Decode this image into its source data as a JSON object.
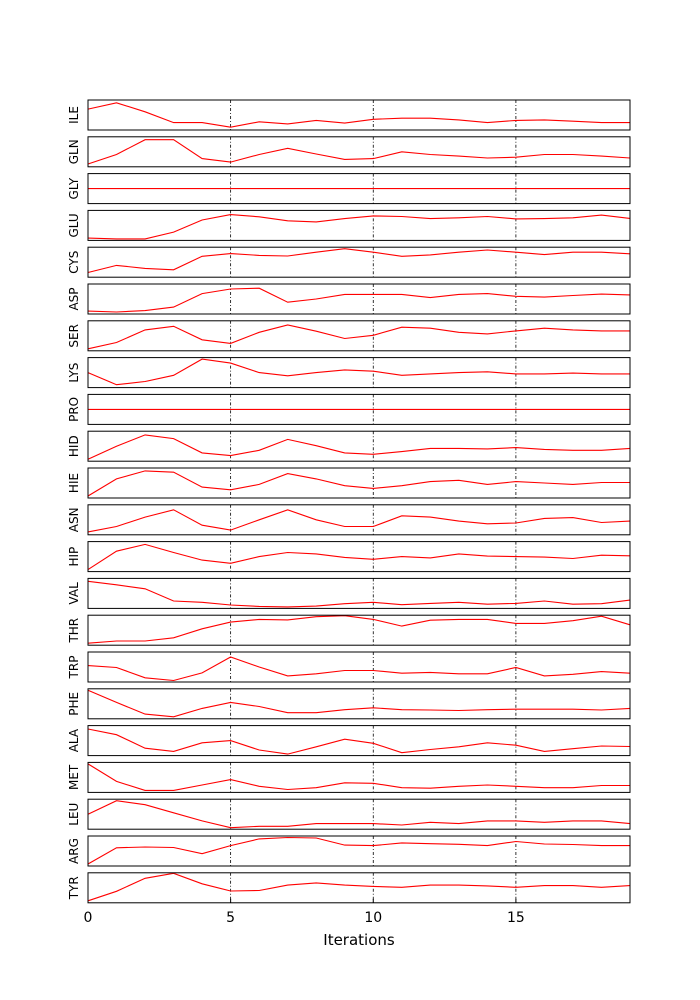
{
  "chart_data": {
    "type": "line",
    "xlabel": "Iterations",
    "xlim": [
      0,
      19
    ],
    "xticks": [
      0,
      5,
      10,
      15
    ],
    "ylim": [
      0,
      1
    ],
    "grid_x": true,
    "color": "#ff0000",
    "panels": [
      {
        "name": "ILE",
        "values": [
          0.72,
          0.95,
          0.62,
          0.22,
          0.22,
          0.05,
          0.25,
          0.17,
          0.3,
          0.2,
          0.34,
          0.38,
          0.38,
          0.32,
          0.22,
          0.3,
          0.32,
          0.27,
          0.22,
          0.22
        ]
      },
      {
        "name": "GLN",
        "values": [
          0.05,
          0.4,
          0.95,
          0.95,
          0.25,
          0.12,
          0.4,
          0.63,
          0.42,
          0.22,
          0.25,
          0.5,
          0.4,
          0.34,
          0.27,
          0.3,
          0.4,
          0.4,
          0.34,
          0.27
        ]
      },
      {
        "name": "GLY",
        "values": [
          0.5,
          0.5,
          0.5,
          0.5,
          0.5,
          0.5,
          0.5,
          0.5,
          0.5,
          0.5,
          0.5,
          0.5,
          0.5,
          0.5,
          0.5,
          0.5,
          0.5,
          0.5,
          0.5,
          0.5
        ]
      },
      {
        "name": "GLU",
        "values": [
          0.03,
          0.0,
          0.0,
          0.25,
          0.7,
          0.9,
          0.82,
          0.67,
          0.63,
          0.75,
          0.85,
          0.83,
          0.75,
          0.78,
          0.83,
          0.74,
          0.75,
          0.78,
          0.88,
          0.76
        ]
      },
      {
        "name": "CYS",
        "values": [
          0.12,
          0.38,
          0.27,
          0.22,
          0.72,
          0.82,
          0.75,
          0.73,
          0.87,
          1.0,
          0.87,
          0.72,
          0.77,
          0.87,
          0.95,
          0.87,
          0.78,
          0.87,
          0.87,
          0.81
        ]
      },
      {
        "name": "ASP",
        "values": [
          0.05,
          0.02,
          0.07,
          0.2,
          0.7,
          0.87,
          0.9,
          0.38,
          0.5,
          0.67,
          0.67,
          0.67,
          0.55,
          0.67,
          0.7,
          0.6,
          0.57,
          0.63,
          0.68,
          0.65
        ]
      },
      {
        "name": "SER",
        "values": [
          0.02,
          0.25,
          0.72,
          0.85,
          0.35,
          0.22,
          0.63,
          0.9,
          0.67,
          0.4,
          0.52,
          0.82,
          0.78,
          0.63,
          0.57,
          0.68,
          0.78,
          0.72,
          0.68,
          0.68
        ]
      },
      {
        "name": "LYS",
        "values": [
          0.5,
          0.05,
          0.17,
          0.4,
          1.0,
          0.85,
          0.5,
          0.38,
          0.5,
          0.6,
          0.55,
          0.4,
          0.45,
          0.5,
          0.53,
          0.45,
          0.45,
          0.48,
          0.45,
          0.45
        ]
      },
      {
        "name": "PRO",
        "values": [
          0.5,
          0.5,
          0.5,
          0.5,
          0.5,
          0.5,
          0.5,
          0.5,
          0.5,
          0.5,
          0.5,
          0.5,
          0.5,
          0.5,
          0.5,
          0.5,
          0.5,
          0.5,
          0.5,
          0.5
        ]
      },
      {
        "name": "HID",
        "values": [
          0.02,
          0.5,
          0.92,
          0.78,
          0.25,
          0.15,
          0.35,
          0.75,
          0.52,
          0.25,
          0.2,
          0.3,
          0.42,
          0.42,
          0.4,
          0.45,
          0.38,
          0.35,
          0.35,
          0.42
        ]
      },
      {
        "name": "HIE",
        "values": [
          0.02,
          0.65,
          0.95,
          0.9,
          0.35,
          0.25,
          0.45,
          0.85,
          0.65,
          0.4,
          0.3,
          0.4,
          0.55,
          0.6,
          0.45,
          0.55,
          0.5,
          0.45,
          0.52,
          0.52
        ]
      },
      {
        "name": "ASN",
        "values": [
          0.05,
          0.25,
          0.6,
          0.87,
          0.3,
          0.12,
          0.5,
          0.87,
          0.5,
          0.25,
          0.25,
          0.65,
          0.6,
          0.45,
          0.35,
          0.38,
          0.55,
          0.58,
          0.4,
          0.45
        ]
      },
      {
        "name": "HIP",
        "values": [
          0.02,
          0.7,
          0.95,
          0.65,
          0.37,
          0.25,
          0.5,
          0.65,
          0.6,
          0.47,
          0.4,
          0.5,
          0.45,
          0.6,
          0.52,
          0.5,
          0.48,
          0.43,
          0.55,
          0.53
        ]
      },
      {
        "name": "VAL",
        "values": [
          0.95,
          0.82,
          0.67,
          0.22,
          0.17,
          0.07,
          0.02,
          0.0,
          0.03,
          0.12,
          0.17,
          0.08,
          0.13,
          0.17,
          0.1,
          0.13,
          0.22,
          0.1,
          0.12,
          0.25
        ]
      },
      {
        "name": "THR",
        "values": [
          0.02,
          0.1,
          0.1,
          0.22,
          0.55,
          0.8,
          0.9,
          0.88,
          1.0,
          1.05,
          0.9,
          0.65,
          0.87,
          0.9,
          0.9,
          0.75,
          0.75,
          0.85,
          1.02,
          0.7
        ]
      },
      {
        "name": "TRP",
        "values": [
          0.55,
          0.48,
          0.1,
          0.0,
          0.28,
          0.87,
          0.5,
          0.17,
          0.25,
          0.37,
          0.37,
          0.27,
          0.3,
          0.25,
          0.25,
          0.48,
          0.17,
          0.23,
          0.33,
          0.27
        ]
      },
      {
        "name": "PHE",
        "values": [
          1.0,
          0.55,
          0.12,
          0.02,
          0.33,
          0.55,
          0.4,
          0.17,
          0.17,
          0.28,
          0.35,
          0.28,
          0.27,
          0.25,
          0.28,
          0.3,
          0.3,
          0.3,
          0.27,
          0.33
        ]
      },
      {
        "name": "ALA",
        "values": [
          0.93,
          0.72,
          0.22,
          0.1,
          0.42,
          0.5,
          0.15,
          0.0,
          0.27,
          0.55,
          0.4,
          0.05,
          0.17,
          0.27,
          0.42,
          0.33,
          0.1,
          0.2,
          0.3,
          0.28
        ]
      },
      {
        "name": "MET",
        "values": [
          1.0,
          0.35,
          0.02,
          0.02,
          0.22,
          0.42,
          0.17,
          0.05,
          0.12,
          0.3,
          0.28,
          0.12,
          0.1,
          0.17,
          0.22,
          0.17,
          0.12,
          0.12,
          0.2,
          0.2
        ]
      },
      {
        "name": "LEU",
        "values": [
          0.5,
          1.0,
          0.85,
          0.55,
          0.25,
          0.0,
          0.05,
          0.05,
          0.15,
          0.15,
          0.15,
          0.1,
          0.2,
          0.15,
          0.25,
          0.25,
          0.2,
          0.25,
          0.25,
          0.15
        ]
      },
      {
        "name": "ARG",
        "values": [
          0.02,
          0.62,
          0.65,
          0.63,
          0.4,
          0.7,
          0.95,
          1.0,
          0.98,
          0.72,
          0.7,
          0.8,
          0.77,
          0.75,
          0.7,
          0.85,
          0.76,
          0.74,
          0.7,
          0.7
        ]
      },
      {
        "name": "TYR",
        "values": [
          0.02,
          0.37,
          0.85,
          1.05,
          0.65,
          0.38,
          0.4,
          0.6,
          0.68,
          0.6,
          0.55,
          0.52,
          0.6,
          0.6,
          0.57,
          0.52,
          0.58,
          0.58,
          0.52,
          0.58
        ]
      }
    ]
  }
}
